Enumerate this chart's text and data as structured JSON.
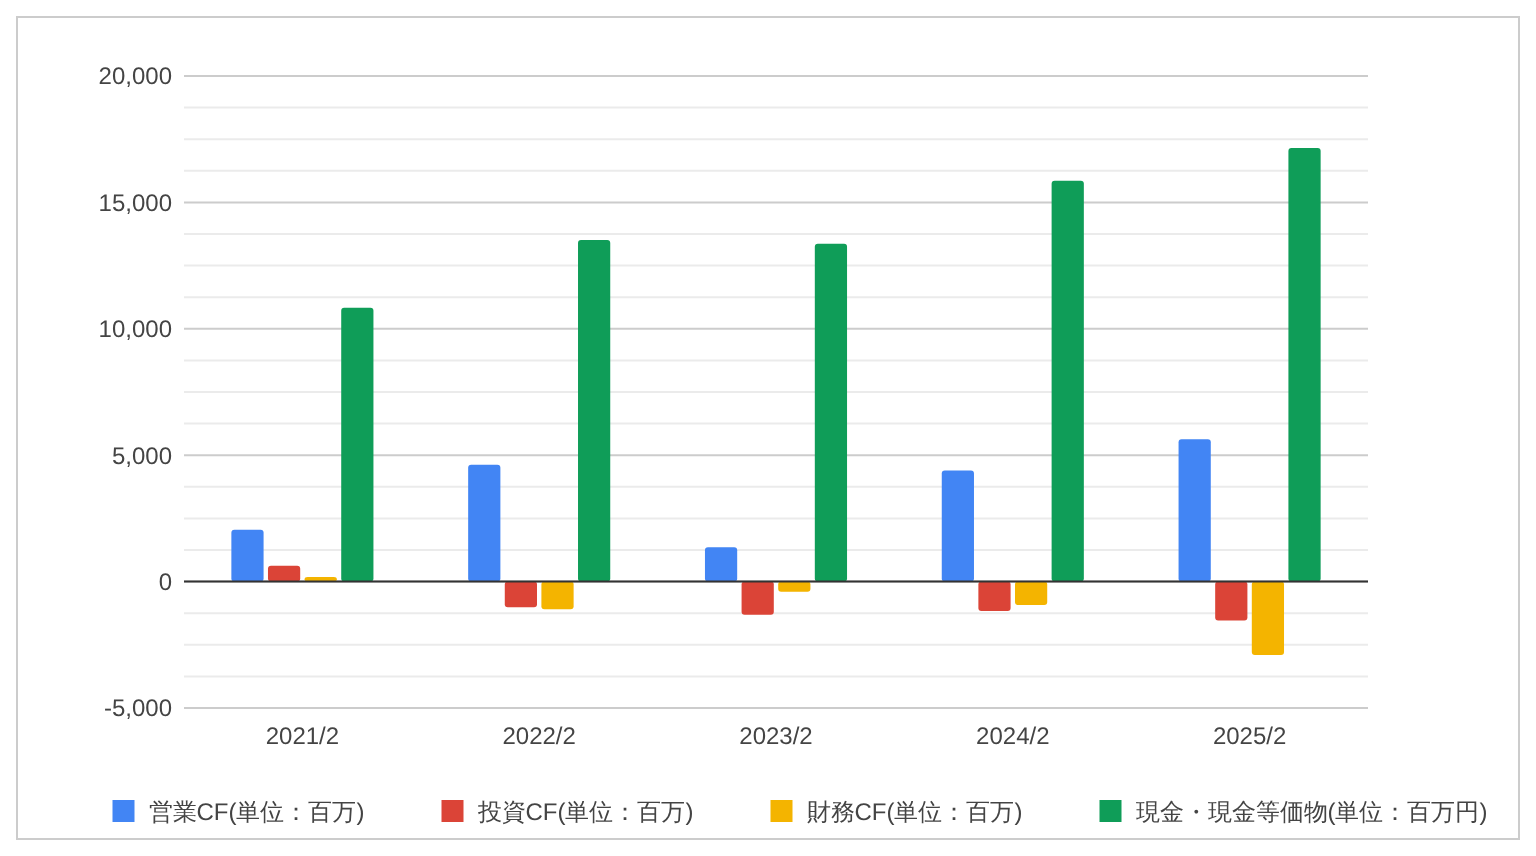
{
  "chart_data": {
    "type": "bar",
    "categories": [
      "2021/2",
      "2022/2",
      "2023/2",
      "2024/2",
      "2025/2"
    ],
    "series": [
      {
        "name": "営業CF(単位：百万)",
        "color": "#4285f4",
        "values": [
          2050,
          4620,
          1360,
          4390,
          5630
        ]
      },
      {
        "name": "投資CF(単位：百万)",
        "color": "#db4437",
        "values": [
          630,
          -1010,
          -1310,
          -1160,
          -1540
        ]
      },
      {
        "name": "財務CF(単位：百万)",
        "color": "#f4b400",
        "values": [
          180,
          -1090,
          -400,
          -930,
          -2900
        ]
      },
      {
        "name": "現金・現金等価物(単位：百万円)",
        "color": "#0f9d58",
        "values": [
          10830,
          13510,
          13360,
          15860,
          17150
        ]
      }
    ],
    "ylim": [
      -5000,
      20000
    ],
    "yticks": [
      {
        "value": -5000,
        "label": "-5,000"
      },
      {
        "value": -3750,
        "label": null
      },
      {
        "value": -2500,
        "label": null
      },
      {
        "value": -1250,
        "label": null
      },
      0,
      {
        "value": 1250,
        "label": null
      },
      {
        "value": 2500,
        "label": null
      },
      {
        "value": 3750,
        "label": null
      },
      {
        "value": 5000,
        "label": "5,000"
      },
      {
        "value": 6250,
        "label": null
      },
      {
        "value": 7500,
        "label": null
      },
      {
        "value": 8750,
        "label": null
      },
      {
        "value": 10000,
        "label": "10,000"
      },
      {
        "value": 11250,
        "label": null
      },
      {
        "value": 12500,
        "label": null
      },
      {
        "value": 13750,
        "label": null
      },
      {
        "value": 15000,
        "label": "15,000"
      },
      {
        "value": 16250,
        "label": null
      },
      {
        "value": 17500,
        "label": null
      },
      {
        "value": 18750,
        "label": null
      },
      {
        "value": 20000,
        "label": "20,000"
      }
    ],
    "grid": "y",
    "legend": "bottom"
  }
}
